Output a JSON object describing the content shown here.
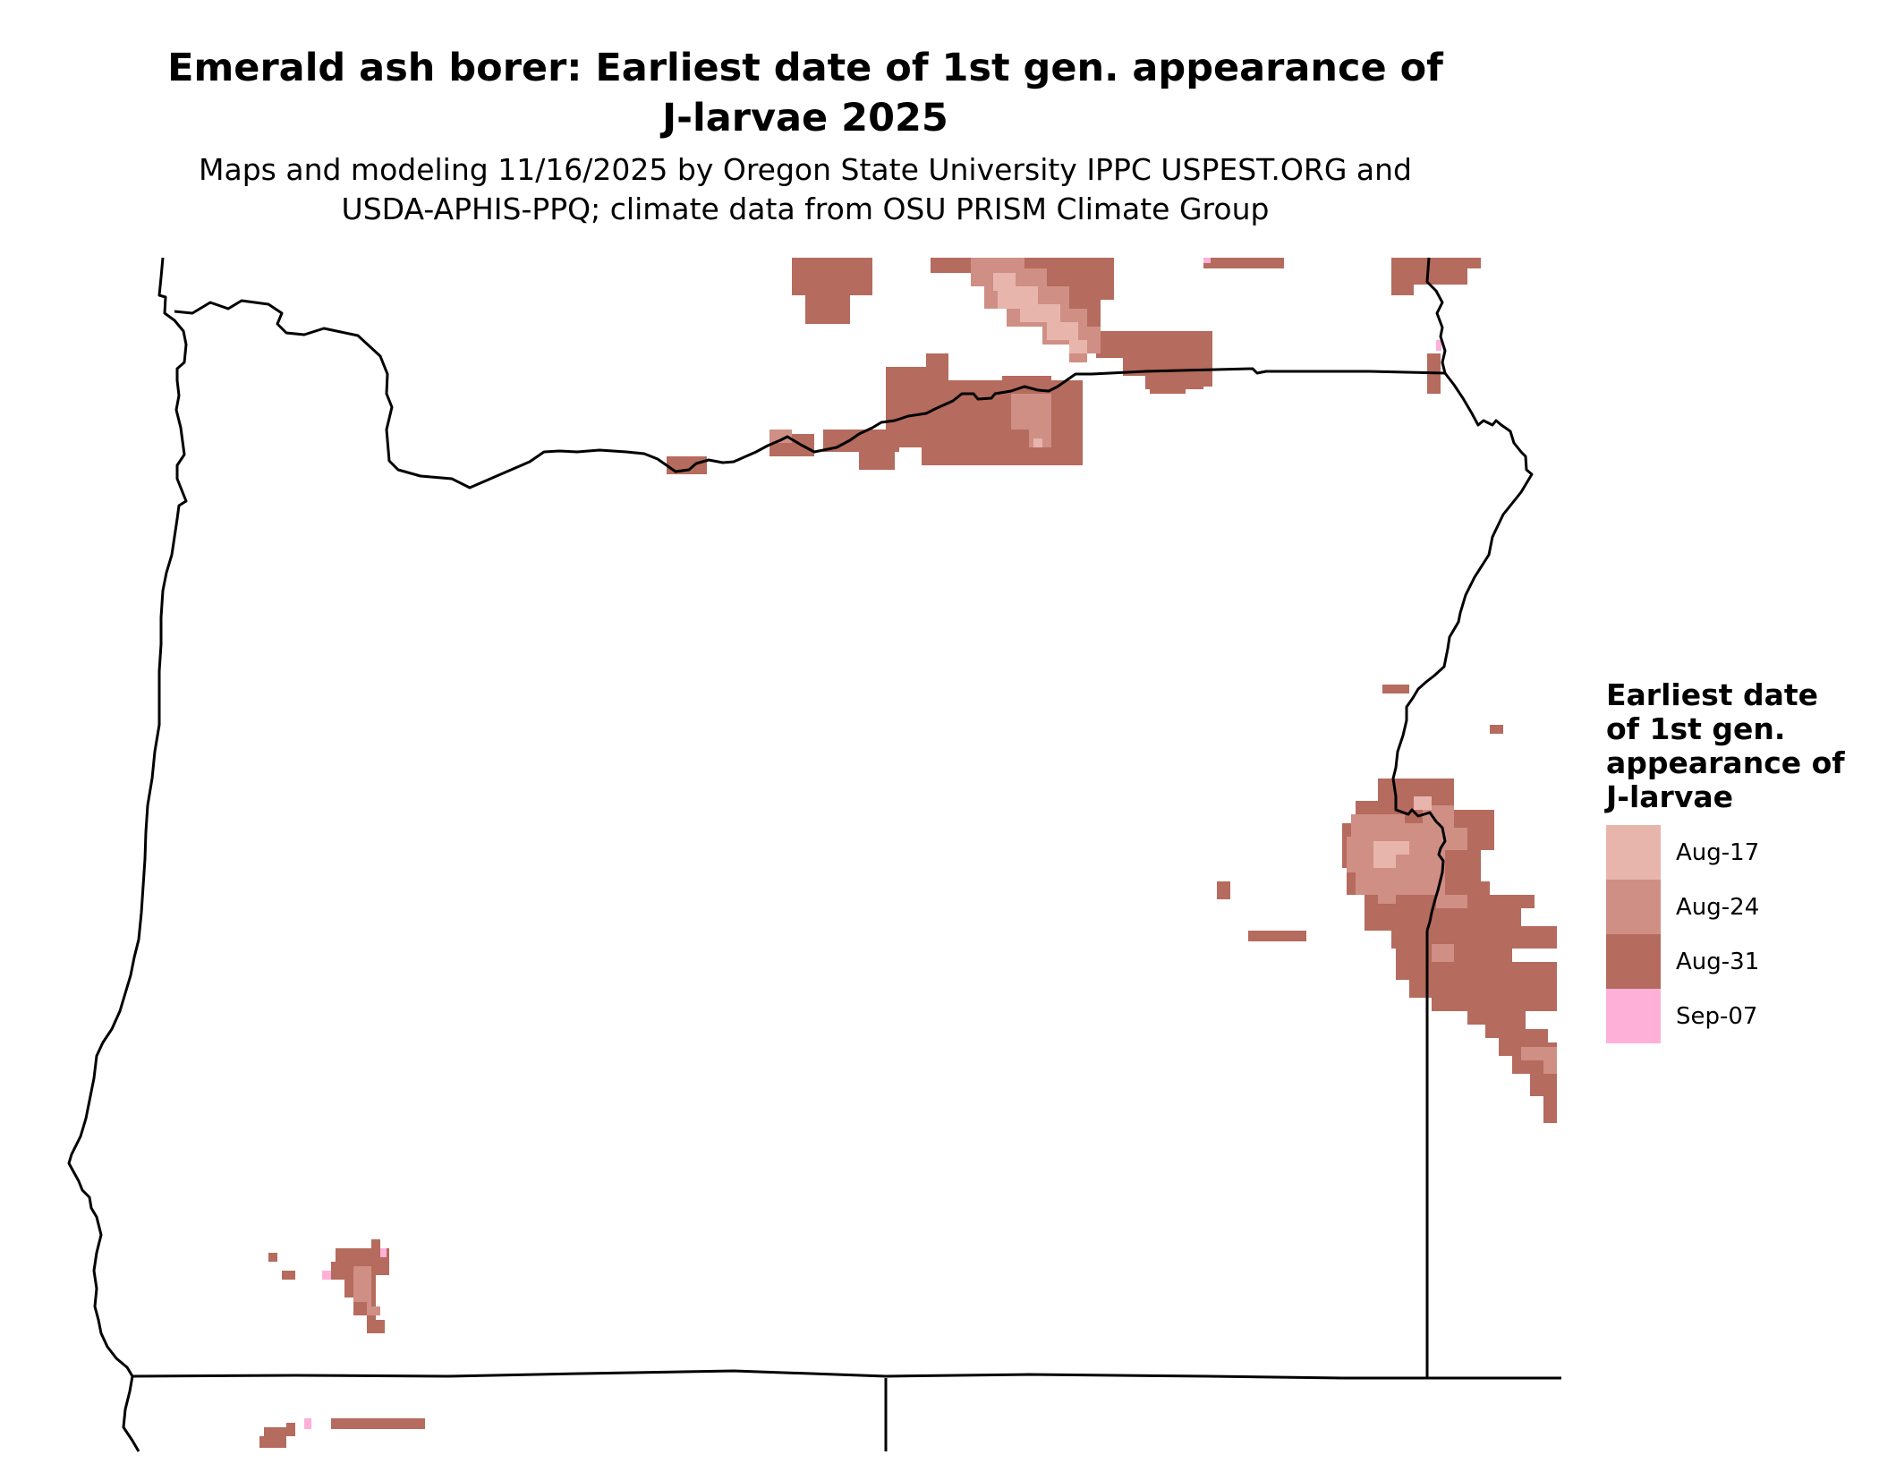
{
  "title_lines": [
    "Emerald ash borer: Earliest date of 1st gen. appearance of",
    "J-larvae 2025"
  ],
  "subtitle_lines": [
    "Maps and modeling 11/16/2025 by Oregon State University IPPC USPEST.ORG and",
    "USDA-APHIS-PPQ; climate data from OSU PRISM Climate Group"
  ],
  "legend": {
    "title_lines": [
      "Earliest date",
      "of 1st gen.",
      "appearance of",
      "J-larvae"
    ],
    "items": [
      {
        "label": "Aug-17",
        "color": "#e8b5ad"
      },
      {
        "label": "Aug-24",
        "color": "#cf8f85"
      },
      {
        "label": "Aug-31",
        "color": "#b56b5d"
      },
      {
        "label": "Sep-07",
        "color": "#ffb0d8"
      }
    ]
  }
}
